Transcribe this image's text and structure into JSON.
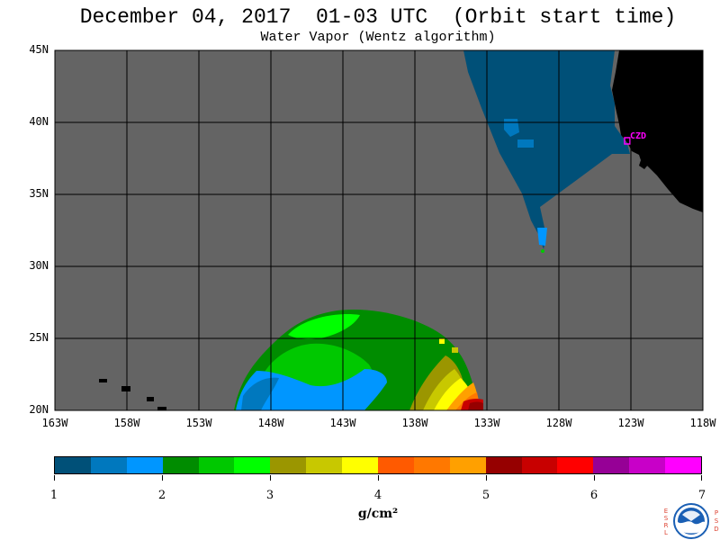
{
  "title": "December 04, 2017  01-03 UTC  (Orbit start time)",
  "subtitle": "Water Vapor (Wentz algorithm)",
  "lat_labels": [
    "45N",
    "40N",
    "35N",
    "30N",
    "25N",
    "20N"
  ],
  "lon_labels": [
    "163W",
    "158W",
    "153W",
    "148W",
    "143W",
    "138W",
    "133W",
    "128W",
    "123W",
    "118W"
  ],
  "station_label": "CZD",
  "colorbar": {
    "ticks": [
      "1",
      "2",
      "3",
      "4",
      "5",
      "6",
      "7"
    ],
    "units": "g/cm²",
    "colors": [
      "#005078",
      "#0078be",
      "#0096ff",
      "#008c00",
      "#00c800",
      "#00ff00",
      "#9b9600",
      "#c8c800",
      "#ffff00",
      "#ff5a00",
      "#ff7800",
      "#ffa000",
      "#960000",
      "#c80000",
      "#ff0000",
      "#960096",
      "#c800c8",
      "#ff00ff"
    ]
  },
  "colors": {
    "no_data": "#646464",
    "land": "#000000",
    "grid": "#000000",
    "station": "#ff00ff"
  },
  "logo": {
    "left_letters": [
      "E",
      "S",
      "R",
      "L"
    ],
    "right_letters": [
      "P",
      "S",
      "D"
    ],
    "name": "NOAA"
  }
}
